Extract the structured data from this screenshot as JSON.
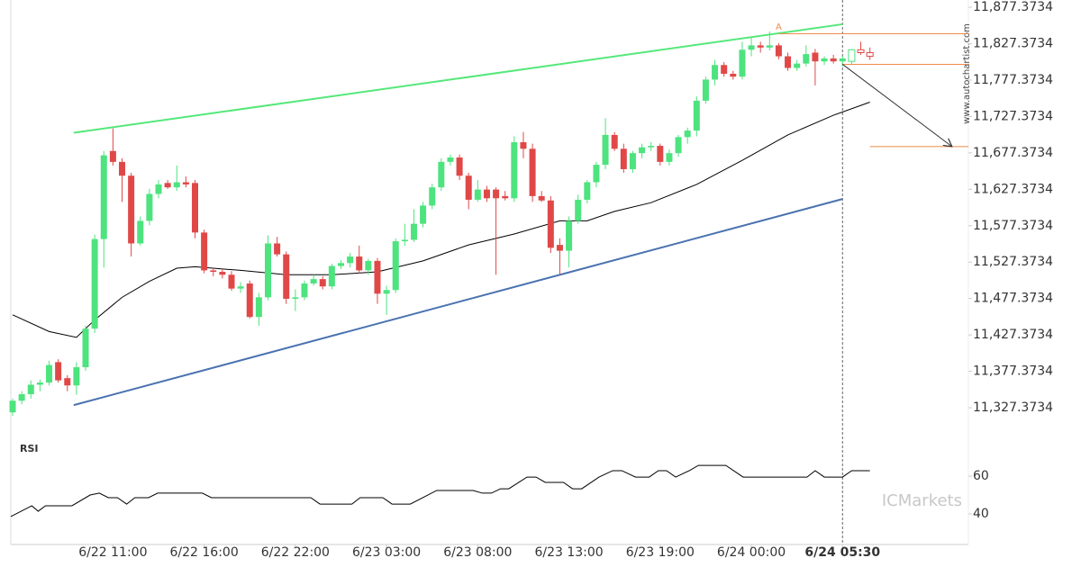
{
  "chart_data": {
    "type": "candlestick",
    "xlim": [
      -0.2,
      104.8
    ],
    "xticks": [
      {
        "value": 11,
        "label": "6/22 11:00"
      },
      {
        "value": 21,
        "label": "6/22 16:00"
      },
      {
        "value": 31,
        "label": "6/22 22:00"
      },
      {
        "value": 41,
        "label": "6/23 03:00"
      },
      {
        "value": 51,
        "label": "6/23 08:00"
      },
      {
        "value": 61,
        "label": "6/23 13:00"
      },
      {
        "value": 71,
        "label": "6/23 19:00"
      },
      {
        "value": 81,
        "label": "6/24 00:00"
      },
      {
        "value": 91,
        "label": "6/24 05:30"
      }
    ],
    "current_x": 91,
    "ylim": [
      11281.7,
      11887.3
    ],
    "yticks": [
      {
        "value": 11877.3734,
        "label": "11,877.3734"
      },
      {
        "value": 11827.3734,
        "label": "11,827.3734"
      },
      {
        "value": 11777.3734,
        "label": "11,777.3734"
      },
      {
        "value": 11727.3734,
        "label": "11,727.3734"
      },
      {
        "value": 11677.3734,
        "label": "11,677.3734"
      },
      {
        "value": 11627.3734,
        "label": "11,627.3734"
      },
      {
        "value": 11577.3734,
        "label": "11,577.3734"
      },
      {
        "value": 11527.3734,
        "label": "11,527.3734"
      },
      {
        "value": 11477.3734,
        "label": "11,477.3734"
      },
      {
        "value": 11427.3734,
        "label": "11,427.3734"
      },
      {
        "value": 11377.3734,
        "label": "11,377.3734"
      },
      {
        "value": 11327.3734,
        "label": "11,327.3734"
      }
    ],
    "up_color": "#4de37e",
    "down_color": "#e04848",
    "open": [
      11321,
      11337,
      11346,
      11359,
      11362,
      11390,
      11368,
      11358,
      11383,
      11436,
      11559,
      11680,
      11665,
      11646,
      11553,
      11584,
      11621,
      11636,
      11630,
      11637,
      11636,
      11568,
      11516,
      11514,
      11510,
      11491,
      11498,
      11452,
      11479,
      11553,
      11538,
      11477,
      11479,
      11498,
      11504,
      11494,
      11522,
      11526,
      11535,
      11516,
      11529,
      11484,
      11489,
      11556,
      11558,
      11580,
      11605,
      11630,
      11665,
      11671,
      11646,
      11613,
      11627,
      11627,
      11618,
      11615,
      11692,
      11683,
      11618,
      11612,
      11551,
      11543,
      11584,
      11613,
      11637,
      11661,
      11702,
      11683,
      11655,
      11677,
      11685,
      11687,
      11665,
      11677,
      11699,
      11708,
      11749,
      11778,
      11798,
      11786,
      11782,
      11819,
      11825,
      11822,
      11825,
      11810,
      11794,
      11800,
      11815,
      11803,
      11807,
      11803
    ],
    "high": [
      11340,
      11350,
      11365,
      11366,
      11392,
      11394,
      11372,
      11390,
      11440,
      11565,
      11680,
      11711,
      11670,
      11650,
      11590,
      11628,
      11640,
      11640,
      11660,
      11645,
      11640,
      11572,
      11520,
      11518,
      11515,
      11500,
      11502,
      11485,
      11564,
      11562,
      11542,
      11490,
      11502,
      11510,
      11508,
      11525,
      11530,
      11540,
      11550,
      11532,
      11533,
      11495,
      11560,
      11580,
      11600,
      11610,
      11635,
      11670,
      11675,
      11675,
      11650,
      11640,
      11632,
      11630,
      11625,
      11700,
      11706,
      11690,
      11625,
      11618,
      11560,
      11590,
      11620,
      11640,
      11665,
      11725,
      11706,
      11690,
      11680,
      11690,
      11692,
      11690,
      11682,
      11702,
      11712,
      11755,
      11782,
      11805,
      11802,
      11790,
      11830,
      11836,
      11830,
      11844,
      11828,
      11815,
      11805,
      11825,
      11820,
      11810,
      11812,
      11810
    ],
    "low": [
      11316,
      11332,
      11340,
      11350,
      11358,
      11362,
      11350,
      11345,
      11378,
      11430,
      11520,
      11660,
      11610,
      11535,
      11550,
      11578,
      11615,
      11628,
      11625,
      11630,
      11560,
      11512,
      11508,
      11505,
      11488,
      11485,
      11450,
      11440,
      11475,
      11535,
      11470,
      11460,
      11475,
      11495,
      11490,
      11490,
      11518,
      11520,
      11512,
      11510,
      11470,
      11455,
      11485,
      11550,
      11555,
      11575,
      11600,
      11625,
      11660,
      11640,
      11600,
      11610,
      11610,
      11510,
      11612,
      11610,
      11670,
      11610,
      11610,
      11540,
      11510,
      11520,
      11580,
      11608,
      11630,
      11655,
      11680,
      11650,
      11650,
      11670,
      11680,
      11660,
      11660,
      11672,
      11690,
      11700,
      11745,
      11770,
      11782,
      11778,
      11778,
      11810,
      11815,
      11818,
      11806,
      11790,
      11790,
      11796,
      11770,
      11798,
      11800,
      11796
    ],
    "close": [
      11337,
      11346,
      11359,
      11362,
      11386,
      11365,
      11358,
      11383,
      11436,
      11559,
      11674,
      11665,
      11646,
      11553,
      11584,
      11621,
      11634,
      11630,
      11637,
      11634,
      11568,
      11516,
      11514,
      11510,
      11491,
      11494,
      11452,
      11479,
      11553,
      11538,
      11477,
      11479,
      11498,
      11504,
      11494,
      11522,
      11526,
      11535,
      11516,
      11529,
      11484,
      11489,
      11556,
      11558,
      11580,
      11605,
      11630,
      11665,
      11671,
      11646,
      11613,
      11627,
      11615,
      11615,
      11615,
      11692,
      11683,
      11618,
      11612,
      11547,
      11543,
      11584,
      11613,
      11637,
      11661,
      11702,
      11683,
      11655,
      11677,
      11685,
      11687,
      11665,
      11677,
      11699,
      11708,
      11749,
      11778,
      11798,
      11786,
      11782,
      11819,
      11825,
      11822,
      11825,
      11810,
      11794,
      11800,
      11813,
      11803,
      11807,
      11803,
      11807
    ],
    "projection": {
      "x_start": 92,
      "open": [
        11803,
        11819,
        11815
      ],
      "high": [
        11820,
        11830,
        11822
      ],
      "low": [
        11798,
        11812,
        11805
      ],
      "close": [
        11819,
        11815,
        11810
      ]
    },
    "moving_average": {
      "color": "#000000",
      "x": [
        0,
        4,
        7,
        9,
        12,
        15,
        18,
        20,
        25,
        30,
        35,
        40,
        45,
        50,
        55,
        60,
        63,
        66,
        70,
        75,
        80,
        85,
        90,
        94
      ],
      "values": [
        11455,
        11432,
        11424,
        11448,
        11479,
        11501,
        11519,
        11521,
        11516,
        11510,
        11510,
        11514,
        11529,
        11551,
        11566,
        11584,
        11584,
        11597,
        11609,
        11634,
        11667,
        11702,
        11729,
        11747
      ]
    },
    "trend_lines": [
      {
        "color": "#55e87a",
        "x": [
          6.7,
          91
        ],
        "values": [
          11705,
          11854
        ]
      },
      {
        "color": "#4a72b0",
        "x": [
          6.7,
          91
        ],
        "values": [
          11331,
          11614
        ]
      }
    ],
    "level_color": "#f08a4b",
    "levels": [
      {
        "value": 11841,
        "x_from": 84
      },
      {
        "value": 11799,
        "x_from": 91
      },
      {
        "value": 11686,
        "x_from": 94
      }
    ],
    "arrow": {
      "x": [
        91,
        103
      ],
      "values": [
        11799,
        11686
      ]
    },
    "annotation": {
      "text": "A",
      "x": 84,
      "value": 11850
    },
    "watermark": "www.autochartist.com",
    "logo": "ICMarkets",
    "rsi": {
      "title": "RSI",
      "ylim": [
        23.8,
        78.6
      ],
      "yticks": [
        40,
        60
      ],
      "x": [
        -0.2,
        2.1,
        2.8,
        3.6,
        6.5,
        8.5,
        9.5,
        10.5,
        11.5,
        12.5,
        13.4,
        14.9,
        15.9,
        20.8,
        21.8,
        32.7,
        33.7,
        37.2,
        38.1,
        40.6,
        41.6,
        43.6,
        46.5,
        50.5,
        51.5,
        52.5,
        53.5,
        54.4,
        56.4,
        57.4,
        58.4,
        60.4,
        61.4,
        62.4,
        64.3,
        65.8,
        66.8,
        68.3,
        69.8,
        70.8,
        71.7,
        72.7,
        74.2,
        75.2,
        78.2,
        80.1,
        87.1,
        88.0,
        89.0,
        91.0,
        92.0,
        94.0
      ],
      "values": [
        38.6,
        44.3,
        41.4,
        44.3,
        44.3,
        50,
        51,
        48.6,
        48.6,
        45.2,
        48.6,
        48.6,
        51,
        51,
        48.6,
        48.6,
        45.2,
        45.2,
        48.6,
        48.6,
        45.2,
        45.2,
        52.4,
        52.4,
        51,
        51,
        53.3,
        53.3,
        59.5,
        59.5,
        56.7,
        56.7,
        53.3,
        53.3,
        59.5,
        62.9,
        62.9,
        59.5,
        59.5,
        62.9,
        62.9,
        59.5,
        62.9,
        65.7,
        65.7,
        59.5,
        59.5,
        62.9,
        59.5,
        59.5,
        62.9,
        62.9
      ]
    }
  }
}
